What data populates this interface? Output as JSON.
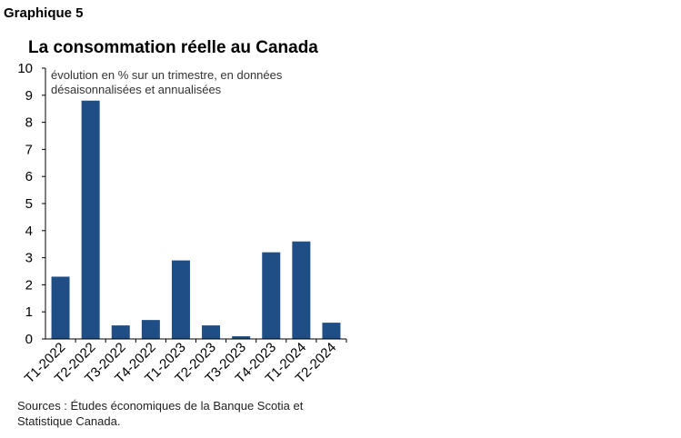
{
  "header": {
    "graph_label": "Graphique 5"
  },
  "chart_data": {
    "type": "bar",
    "title": "La consommation réelle au Canada",
    "ylabel_note": [
      "évolution en % sur un trimestre, en données",
      "désaisonnalisées et annualisées"
    ],
    "categories": [
      "T1-2022",
      "T2-2022",
      "T3-2022",
      "T4-2022",
      "T1-2023",
      "T2-2023",
      "T3-2023",
      "T4-2023",
      "T1-2024",
      "T2-2024"
    ],
    "values": [
      2.3,
      8.8,
      0.5,
      0.7,
      2.9,
      0.5,
      0.1,
      3.2,
      3.6,
      0.6
    ],
    "ylim": [
      0,
      10
    ],
    "yticks": [
      "0",
      "1",
      "2",
      "3",
      "4",
      "5",
      "6",
      "7",
      "8",
      "9",
      "10"
    ],
    "bar_color": "#1f4e86",
    "grid": false
  },
  "footer": {
    "source_lines": [
      "Sources : Études économiques de la Banque Scotia et",
      "Statistique Canada."
    ]
  }
}
